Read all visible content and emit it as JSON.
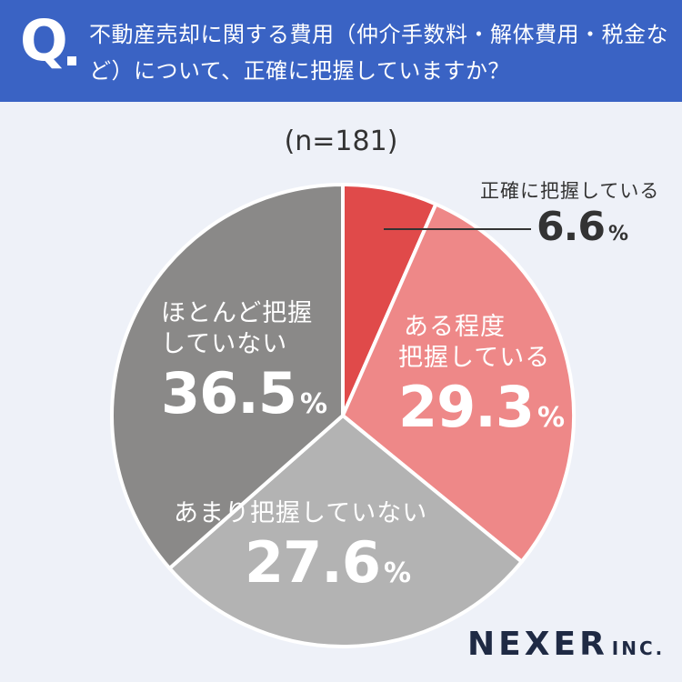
{
  "header": {
    "q_label": "Q",
    "question": "不動産売却に関する費用（仲介手数料・解体費用・税金など）について、正確に把握していますか？"
  },
  "sample_size": "(n=181)",
  "brand": {
    "name": "NEXER",
    "suffix": "INC."
  },
  "colors": {
    "accurate": "#e04a4a",
    "somewhat": "#ee8888",
    "not_much": "#b3b3b3",
    "hardly": "#8a8988",
    "header": "#3a63c4",
    "background": "#eef1f8"
  },
  "chart_data": {
    "type": "pie",
    "categories": [
      "正確に把握している",
      "ある程度把握している",
      "あまり把握していない",
      "ほとんど把握していない"
    ],
    "values": [
      6.6,
      29.3,
      27.6,
      36.5
    ],
    "unit": "%",
    "slices": [
      {
        "label": "正確に把握している",
        "value": 6.6,
        "value_text": "6.6",
        "color": "#e04a4a"
      },
      {
        "label_lines": [
          "ある程度",
          "把握している"
        ],
        "value": 29.3,
        "value_text": "29.3",
        "color": "#ee8888"
      },
      {
        "label_lines": [
          "あまり把握していない"
        ],
        "value": 27.6,
        "value_text": "27.6",
        "color": "#b3b3b3"
      },
      {
        "label_lines": [
          "ほとんど把握",
          "していない"
        ],
        "value": 36.5,
        "value_text": "36.5",
        "color": "#8a8988"
      }
    ]
  }
}
